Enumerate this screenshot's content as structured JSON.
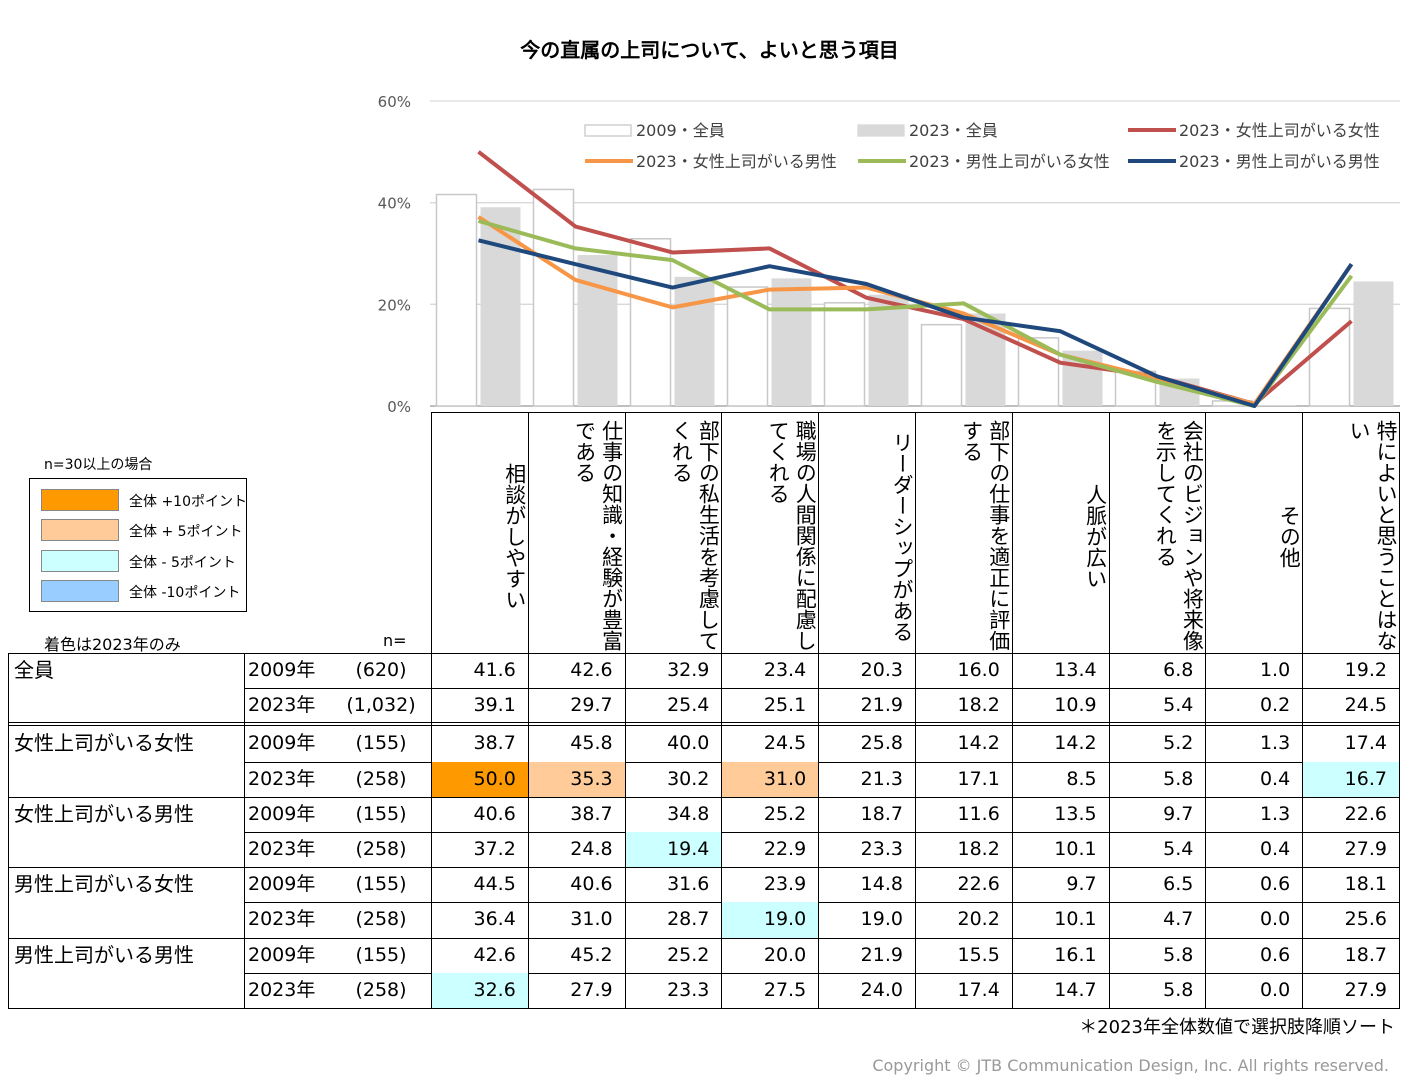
{
  "chart_data": {
    "type": "bar+line",
    "title": "今の直属の上司について、よいと思う項目",
    "ylim": [
      0,
      60
    ],
    "yticks": [
      "0%",
      "20%",
      "40%",
      "60%"
    ],
    "categories": [
      "相談がしやすい",
      "仕事の知識・経験が豊富である",
      "部下の私生活を考慮してくれる",
      "職場の人間関係に配慮してくれる",
      "リーダーシップがある",
      "部下の仕事を適正に評価する",
      "人脈が広い",
      "会社のビジョンや将来像を示してくれる",
      "その他",
      "特によいと思うことはない"
    ],
    "bar_series": [
      {
        "name": "2009・全員",
        "values": [
          41.6,
          42.6,
          32.9,
          23.4,
          20.3,
          16.0,
          13.4,
          6.8,
          1.0,
          19.2
        ],
        "color": "#ffffff",
        "border": "#c8c8c8"
      },
      {
        "name": "2023・全員",
        "values": [
          39.1,
          29.7,
          25.4,
          25.1,
          21.9,
          18.2,
          10.9,
          5.4,
          0.2,
          24.5
        ],
        "color": "#d9d9d9"
      }
    ],
    "line_series": [
      {
        "name": "2023・女性上司がいる女性",
        "values": [
          50.0,
          35.3,
          30.2,
          31.0,
          21.3,
          17.1,
          8.5,
          5.8,
          0.4,
          16.7
        ],
        "color": "#c0504d"
      },
      {
        "name": "2023・女性上司がいる男性",
        "values": [
          37.2,
          24.8,
          19.4,
          22.9,
          23.3,
          18.2,
          10.1,
          5.4,
          0.4,
          27.9
        ],
        "color": "#f79646"
      },
      {
        "name": "2023・男性上司がいる女性",
        "values": [
          36.4,
          31.0,
          28.7,
          19.0,
          19.0,
          20.2,
          10.1,
          4.7,
          0.0,
          25.6
        ],
        "color": "#9bbb59"
      },
      {
        "name": "2023・男性上司がいる男性",
        "values": [
          32.6,
          27.9,
          23.3,
          27.5,
          24.0,
          17.4,
          14.7,
          5.8,
          0.0,
          27.9
        ],
        "color": "#1f497d"
      }
    ]
  },
  "legend_colors": {
    "note": "n=30以上の場合",
    "items": [
      {
        "label": "全体 +10ポイント",
        "color": "#ff9900"
      },
      {
        "label": "全体 + 5ポイント",
        "color": "#ffcc99"
      },
      {
        "label": "全体 - 5ポイント",
        "color": "#ccffff"
      },
      {
        "label": "全体 -10ポイント",
        "color": "#99ccff"
      }
    ],
    "footer": "着色は2023年のみ"
  },
  "table": {
    "n_header": "n=",
    "headers": [
      "相談がしやすい",
      "仕事の知識・経験が豊富である",
      "部下の私生活を考慮してくれる",
      "職場の人間関係に配慮してくれる",
      "リーダーシップがある",
      "部下の仕事を適正に評価する",
      "人脈が広い",
      "会社のビジョンや将来像を示してくれる",
      "その他",
      "特によいと思うことはない"
    ],
    "groups": [
      {
        "name": "全員",
        "rows": [
          {
            "year": "2009年",
            "n": "(620)",
            "values": [
              "41.6",
              "42.6",
              "32.9",
              "23.4",
              "20.3",
              "16.0",
              "13.4",
              "6.8",
              "1.0",
              "19.2"
            ],
            "hl": [
              null,
              null,
              null,
              null,
              null,
              null,
              null,
              null,
              null,
              null
            ]
          },
          {
            "year": "2023年",
            "n": "(1,032)",
            "values": [
              "39.1",
              "29.7",
              "25.4",
              "25.1",
              "21.9",
              "18.2",
              "10.9",
              "5.4",
              "0.2",
              "24.5"
            ],
            "hl": [
              null,
              null,
              null,
              null,
              null,
              null,
              null,
              null,
              null,
              null
            ]
          }
        ]
      },
      {
        "name": "女性上司がいる女性",
        "rows": [
          {
            "year": "2009年",
            "n": "(155)",
            "values": [
              "38.7",
              "45.8",
              "40.0",
              "24.5",
              "25.8",
              "14.2",
              "14.2",
              "5.2",
              "1.3",
              "17.4"
            ],
            "hl": [
              null,
              null,
              null,
              null,
              null,
              null,
              null,
              null,
              null,
              null
            ]
          },
          {
            "year": "2023年",
            "n": "(258)",
            "values": [
              "50.0",
              "35.3",
              "30.2",
              "31.0",
              "21.3",
              "17.1",
              "8.5",
              "5.8",
              "0.4",
              "16.7"
            ],
            "hl": [
              "#ff9900",
              "#ffcc99",
              null,
              "#ffcc99",
              null,
              null,
              null,
              null,
              null,
              "#ccffff"
            ]
          }
        ]
      },
      {
        "name": "女性上司がいる男性",
        "rows": [
          {
            "year": "2009年",
            "n": "(155)",
            "values": [
              "40.6",
              "38.7",
              "34.8",
              "25.2",
              "18.7",
              "11.6",
              "13.5",
              "9.7",
              "1.3",
              "22.6"
            ],
            "hl": [
              null,
              null,
              null,
              null,
              null,
              null,
              null,
              null,
              null,
              null
            ]
          },
          {
            "year": "2023年",
            "n": "(258)",
            "values": [
              "37.2",
              "24.8",
              "19.4",
              "22.9",
              "23.3",
              "18.2",
              "10.1",
              "5.4",
              "0.4",
              "27.9"
            ],
            "hl": [
              null,
              null,
              "#ccffff",
              null,
              null,
              null,
              null,
              null,
              null,
              null
            ]
          }
        ]
      },
      {
        "name": "男性上司がいる女性",
        "rows": [
          {
            "year": "2009年",
            "n": "(155)",
            "values": [
              "44.5",
              "40.6",
              "31.6",
              "23.9",
              "14.8",
              "22.6",
              "9.7",
              "6.5",
              "0.6",
              "18.1"
            ],
            "hl": [
              null,
              null,
              null,
              null,
              null,
              null,
              null,
              null,
              null,
              null
            ]
          },
          {
            "year": "2023年",
            "n": "(258)",
            "values": [
              "36.4",
              "31.0",
              "28.7",
              "19.0",
              "19.0",
              "20.2",
              "10.1",
              "4.7",
              "0.0",
              "25.6"
            ],
            "hl": [
              null,
              null,
              null,
              "#ccffff",
              null,
              null,
              null,
              null,
              null,
              null
            ]
          }
        ]
      },
      {
        "name": "男性上司がいる男性",
        "rows": [
          {
            "year": "2009年",
            "n": "(155)",
            "values": [
              "42.6",
              "45.2",
              "25.2",
              "20.0",
              "21.9",
              "15.5",
              "16.1",
              "5.8",
              "0.6",
              "18.7"
            ],
            "hl": [
              null,
              null,
              null,
              null,
              null,
              null,
              null,
              null,
              null,
              null
            ]
          },
          {
            "year": "2023年",
            "n": "(258)",
            "values": [
              "32.6",
              "27.9",
              "23.3",
              "27.5",
              "24.0",
              "17.4",
              "14.7",
              "5.8",
              "0.0",
              "27.9"
            ],
            "hl": [
              "#ccffff",
              null,
              null,
              null,
              null,
              null,
              null,
              null,
              null,
              null
            ]
          }
        ]
      }
    ]
  },
  "sort_note": "＊2023年全体数値で選択肢降順ソート",
  "copyright": "Copyright © JTB Communication Design, Inc. All rights reserved."
}
